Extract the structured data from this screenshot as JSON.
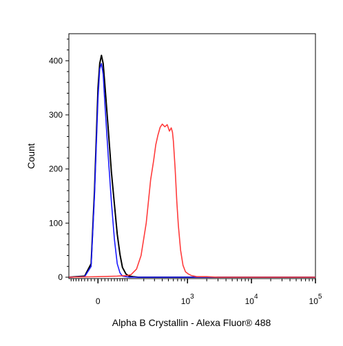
{
  "chart_data": {
    "type": "line",
    "xlabel": "Alpha B Crystallin - Alexa Fluor® 488",
    "ylabel": "Count",
    "ylim": [
      0,
      450
    ],
    "x_scale": "logicle (biexponential): linear near 0, log above about 10^2",
    "xlim_linear": [
      -100,
      100000
    ],
    "legend": "none",
    "grid": false,
    "y_ticks": [
      "0",
      "100",
      "200",
      "300",
      "400"
    ],
    "y_tick_values": [
      0,
      100,
      200,
      300,
      400
    ],
    "x_ticks": [
      {
        "label": "0",
        "exponent": "",
        "value": 0
      },
      {
        "label": "10",
        "exponent": "3",
        "value": 1000
      },
      {
        "label": "10",
        "exponent": "4",
        "value": 10000
      },
      {
        "label": "10",
        "exponent": "5",
        "value": 100000
      }
    ],
    "series": [
      {
        "color": "#000000",
        "x": [
          -100,
          -40,
          -20,
          -10,
          0,
          5,
          10,
          15,
          20,
          30,
          40,
          50,
          60,
          70,
          80,
          95,
          110,
          130,
          160,
          200,
          300,
          1000,
          10000,
          100000
        ],
        "y": [
          0,
          2,
          25,
          160,
          350,
          395,
          410,
          395,
          355,
          275,
          195,
          135,
          80,
          42,
          18,
          6,
          2,
          1,
          0,
          0,
          0,
          0,
          0,
          0
        ]
      },
      {
        "color": "#1a1aff",
        "x": [
          -100,
          -40,
          -20,
          -10,
          0,
          5,
          10,
          15,
          20,
          30,
          40,
          50,
          60,
          70,
          80,
          95,
          110,
          150,
          300,
          1000,
          10000,
          100000
        ],
        "y": [
          0,
          1,
          20,
          150,
          330,
          385,
          395,
          375,
          320,
          225,
          140,
          70,
          25,
          8,
          2,
          1,
          0,
          0,
          0,
          0,
          0,
          0
        ]
      },
      {
        "color": "#ff3b3b",
        "x": [
          -100,
          0,
          60,
          100,
          120,
          150,
          180,
          220,
          260,
          290,
          315,
          340,
          370,
          400,
          440,
          480,
          520,
          555,
          580,
          600,
          640,
          680,
          720,
          780,
          850,
          930,
          1030,
          1150,
          1400,
          2000,
          3000,
          5000,
          10000,
          100000
        ],
        "y": [
          0,
          1,
          2,
          3,
          5,
          15,
          40,
          100,
          180,
          215,
          245,
          262,
          277,
          283,
          278,
          282,
          270,
          276,
          268,
          252,
          200,
          140,
          95,
          50,
          22,
          10,
          6,
          3,
          1,
          1,
          0,
          0,
          0,
          0
        ]
      }
    ]
  }
}
